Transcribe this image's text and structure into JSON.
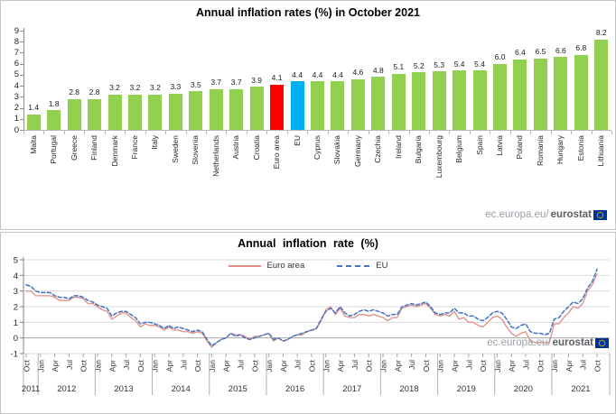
{
  "watermark": {
    "prefix": "ec.europa.eu/",
    "bold": "eurostat"
  },
  "chart_data": [
    {
      "type": "bar",
      "title": "Annual inflation rates (%) in October 2021",
      "categories": [
        "Malta",
        "Portugal",
        "Greece",
        "Finland",
        "Denmark",
        "France",
        "Italy",
        "Sweden",
        "Slovenia",
        "Netherlands",
        "Austria",
        "Croatia",
        "Euro area",
        "EU",
        "Cyprus",
        "Slovakia",
        "Germany",
        "Czechia",
        "Ireland",
        "Bulgaria",
        "Luxembourg",
        "Belgium",
        "Spain",
        "Latvia",
        "Poland",
        "Romania",
        "Hungary",
        "Estonia",
        "Lithuania"
      ],
      "values": [
        1.4,
        1.8,
        2.8,
        2.8,
        3.2,
        3.2,
        3.2,
        3.3,
        3.5,
        3.7,
        3.7,
        3.9,
        4.1,
        4.4,
        4.4,
        4.4,
        4.6,
        4.8,
        5.1,
        5.2,
        5.3,
        5.4,
        5.4,
        6.0,
        6.4,
        6.5,
        6.6,
        6.8,
        8.2
      ],
      "bar_color": "#92d050",
      "highlight_colors": {
        "Euro area": "#ff0000",
        "EU": "#00b0f0"
      },
      "ylim": [
        0,
        9
      ],
      "yticks": [
        0,
        1,
        2,
        3,
        4,
        5,
        6,
        7,
        8,
        9
      ],
      "grid": false,
      "xlabel": "",
      "ylabel": ""
    },
    {
      "type": "line",
      "title": "Annual inflation rate (%)",
      "ylim": [
        -1,
        5
      ],
      "yticks": [
        -1,
        0,
        1,
        2,
        3,
        4,
        5
      ],
      "grid": true,
      "legend_position": "top-center",
      "x_month_ticks": [
        "Oct",
        "Jan",
        "Apr",
        "Jul",
        "Oct",
        "Jan",
        "Apr",
        "Jul",
        "Oct",
        "Jan",
        "Apr",
        "Jul",
        "Oct",
        "Jan",
        "Apr",
        "Jul",
        "Oct",
        "Jan",
        "Apr",
        "Jul",
        "Oct",
        "Jan",
        "Apr",
        "Jul",
        "Oct",
        "Jan",
        "Apr",
        "Jul",
        "Oct",
        "Jan",
        "Apr",
        "Jul",
        "Oct",
        "Jan",
        "Apr",
        "Jul",
        "Oct",
        "Jan",
        "Apr",
        "Jul",
        "Oct"
      ],
      "x_years": [
        "2011",
        "2012",
        "2013",
        "2014",
        "2015",
        "2016",
        "2017",
        "2018",
        "2019",
        "2020",
        "2021"
      ],
      "x_range": "Oct 2011 - Oct 2021, monthly",
      "series": [
        {
          "name": "Euro area",
          "style": "solid",
          "color": "#e08d85",
          "values": [
            3.0,
            3.0,
            2.7,
            2.7,
            2.7,
            2.7,
            2.6,
            2.4,
            2.4,
            2.4,
            2.6,
            2.6,
            2.5,
            2.2,
            2.2,
            2.0,
            1.8,
            1.7,
            1.2,
            1.4,
            1.6,
            1.6,
            1.3,
            1.1,
            0.7,
            0.9,
            0.8,
            0.8,
            0.7,
            0.5,
            0.7,
            0.5,
            0.5,
            0.4,
            0.4,
            0.3,
            0.4,
            0.3,
            -0.2,
            -0.6,
            -0.3,
            -0.1,
            0.0,
            0.3,
            0.2,
            0.2,
            0.1,
            -0.1,
            0.1,
            0.1,
            0.2,
            0.3,
            -0.2,
            0.0,
            -0.2,
            -0.1,
            0.1,
            0.2,
            0.2,
            0.4,
            0.5,
            0.6,
            1.1,
            1.8,
            2.0,
            1.5,
            1.9,
            1.4,
            1.3,
            1.3,
            1.5,
            1.5,
            1.4,
            1.5,
            1.4,
            1.3,
            1.1,
            1.3,
            1.3,
            1.9,
            2.0,
            2.1,
            2.0,
            2.1,
            2.2,
            1.9,
            1.5,
            1.4,
            1.5,
            1.4,
            1.7,
            1.2,
            1.3,
            1.0,
            1.0,
            0.8,
            0.7,
            1.0,
            1.3,
            1.4,
            1.2,
            0.7,
            0.3,
            0.1,
            0.3,
            0.4,
            -0.2,
            -0.3,
            -0.3,
            -0.3,
            -0.3,
            0.9,
            0.9,
            1.3,
            1.6,
            2.0,
            1.9,
            2.2,
            3.0,
            3.4,
            4.1
          ]
        },
        {
          "name": "EU",
          "style": "dashed",
          "color": "#4472c4",
          "values": [
            3.4,
            3.3,
            3.0,
            2.9,
            2.9,
            2.9,
            2.7,
            2.6,
            2.6,
            2.5,
            2.7,
            2.7,
            2.6,
            2.4,
            2.3,
            2.1,
            2.0,
            1.9,
            1.4,
            1.6,
            1.7,
            1.7,
            1.5,
            1.3,
            0.9,
            1.0,
            1.0,
            0.9,
            0.8,
            0.6,
            0.8,
            0.6,
            0.7,
            0.6,
            0.5,
            0.4,
            0.5,
            0.4,
            -0.1,
            -0.5,
            -0.3,
            -0.1,
            0.0,
            0.3,
            0.1,
            0.2,
            0.0,
            -0.1,
            0.0,
            0.1,
            0.2,
            0.3,
            -0.1,
            0.0,
            -0.2,
            -0.1,
            0.1,
            0.2,
            0.3,
            0.4,
            0.5,
            0.6,
            1.2,
            1.7,
            1.9,
            1.6,
            2.0,
            1.6,
            1.4,
            1.5,
            1.7,
            1.8,
            1.7,
            1.8,
            1.7,
            1.6,
            1.4,
            1.5,
            1.5,
            2.0,
            2.1,
            2.2,
            2.1,
            2.2,
            2.3,
            2.0,
            1.6,
            1.5,
            1.6,
            1.6,
            1.9,
            1.6,
            1.6,
            1.4,
            1.4,
            1.2,
            1.1,
            1.3,
            1.6,
            1.7,
            1.6,
            1.2,
            0.7,
            0.6,
            0.8,
            0.9,
            0.4,
            0.3,
            0.3,
            0.2,
            0.3,
            1.2,
            1.3,
            1.7,
            2.0,
            2.3,
            2.2,
            2.5,
            3.2,
            3.6,
            4.4
          ]
        }
      ]
    }
  ]
}
